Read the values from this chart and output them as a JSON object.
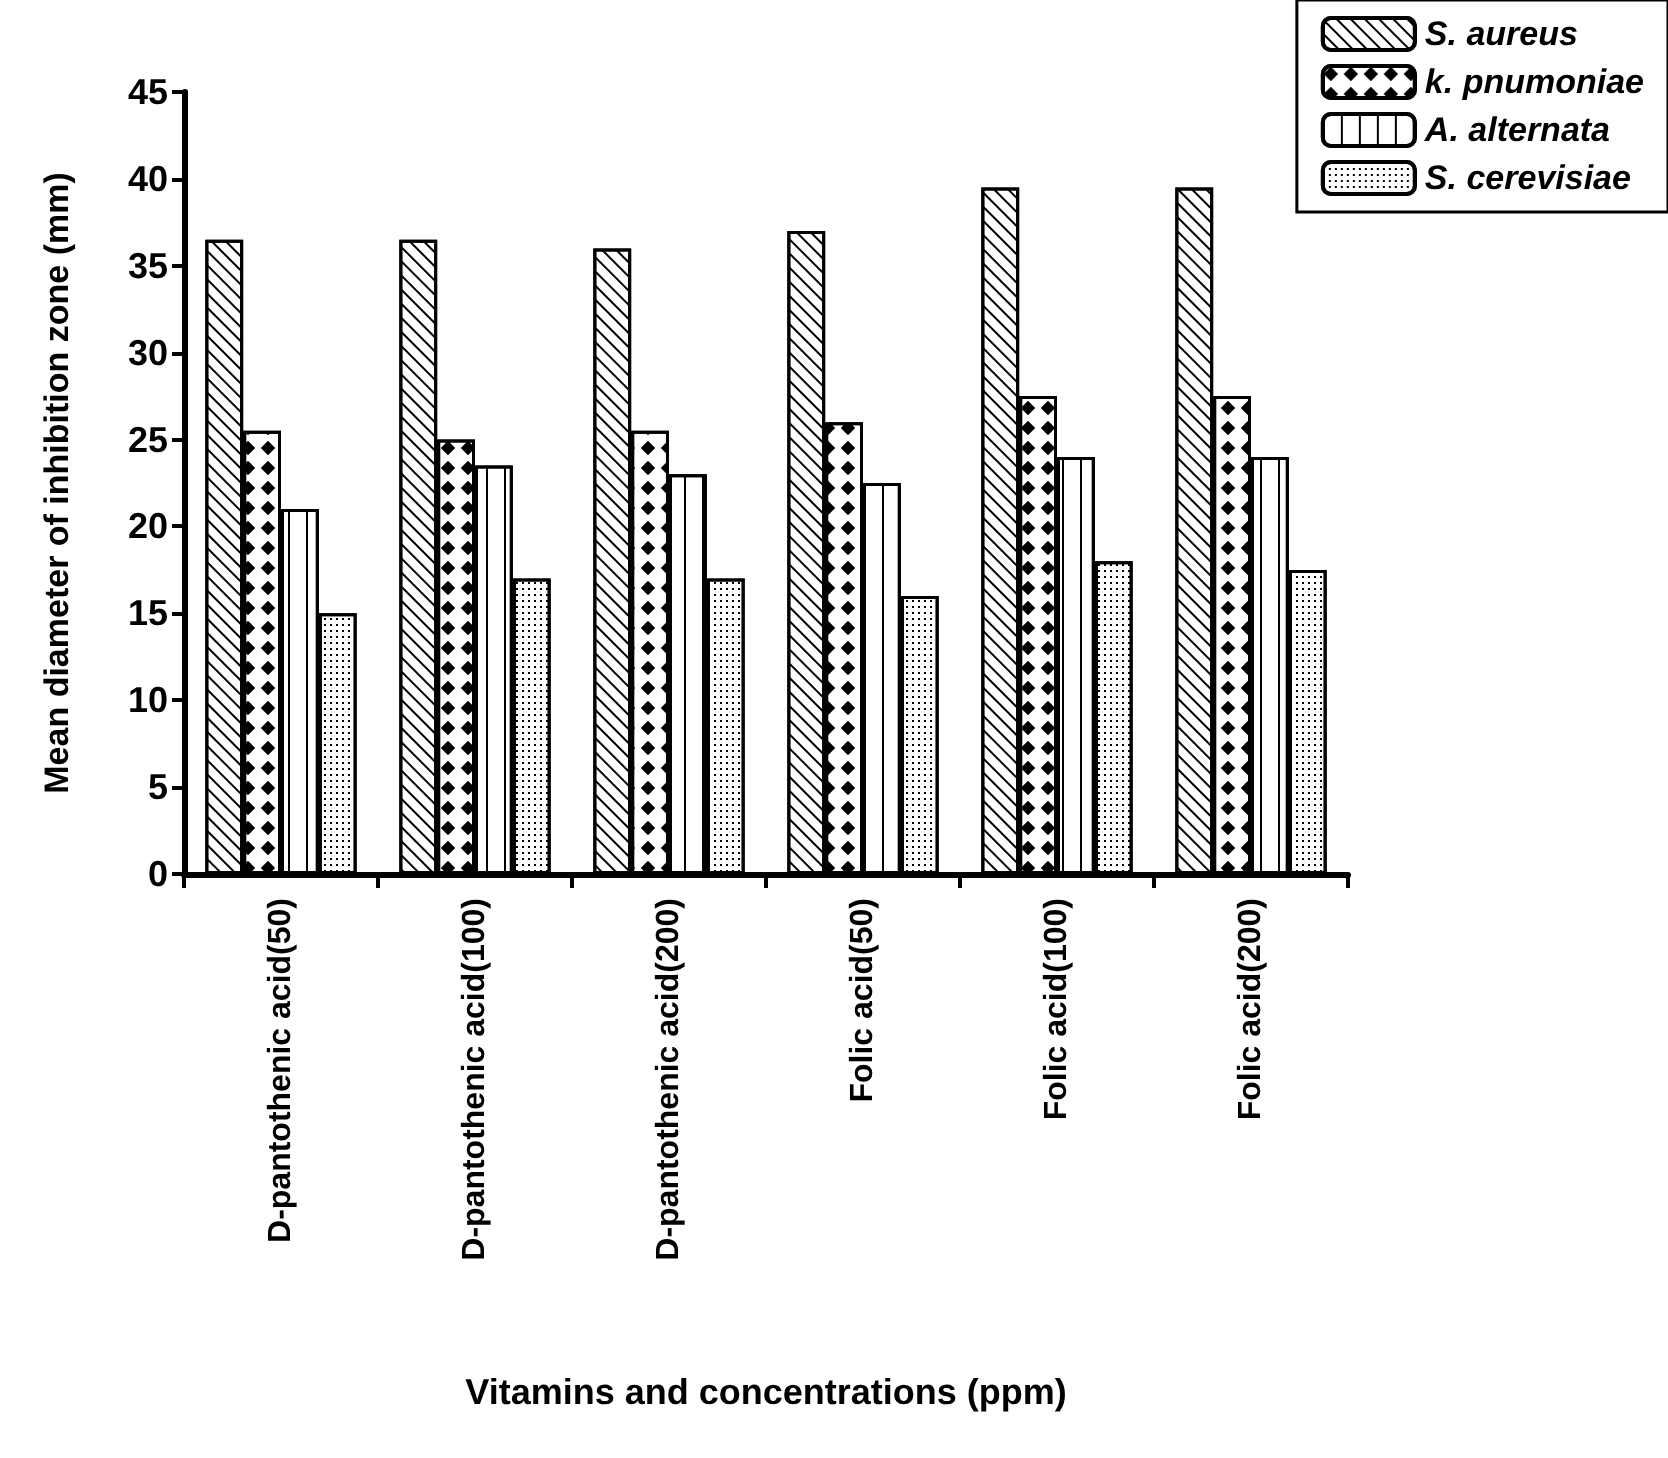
{
  "chart_data": {
    "type": "bar",
    "xlabel": "Vitamins and concentrations (ppm)",
    "ylabel": "Mean diameter of inhibition zone (mm)",
    "categories": [
      "D-pantothenic acid(50)",
      "D-pantothenic acid(100)",
      "D-pantothenic acid(200)",
      "Folic acid(50)",
      "Folic acid(100)",
      "Folic acid(200)"
    ],
    "series": [
      {
        "name": "S. aureus",
        "color": "#ffffff",
        "values": [
          36.5,
          36.5,
          36,
          37,
          39.5,
          39.5
        ]
      },
      {
        "name": "k. pnumoniae",
        "color": "#ffffff",
        "values": [
          25.5,
          25,
          25.5,
          26,
          27.5,
          27.5
        ]
      },
      {
        "name": "A. alternata",
        "color": "#ffffff",
        "values": [
          21,
          23.5,
          23,
          22.5,
          24,
          24
        ]
      },
      {
        "name": "S. cerevisiae",
        "color": "#ffffff",
        "values": [
          15,
          17,
          17,
          16,
          18,
          17.5
        ]
      }
    ],
    "ylim": [
      0,
      45
    ],
    "yticks": [
      0,
      5,
      10,
      15,
      20,
      25,
      30,
      35,
      40,
      45
    ],
    "grid": false,
    "legend": "top right"
  }
}
